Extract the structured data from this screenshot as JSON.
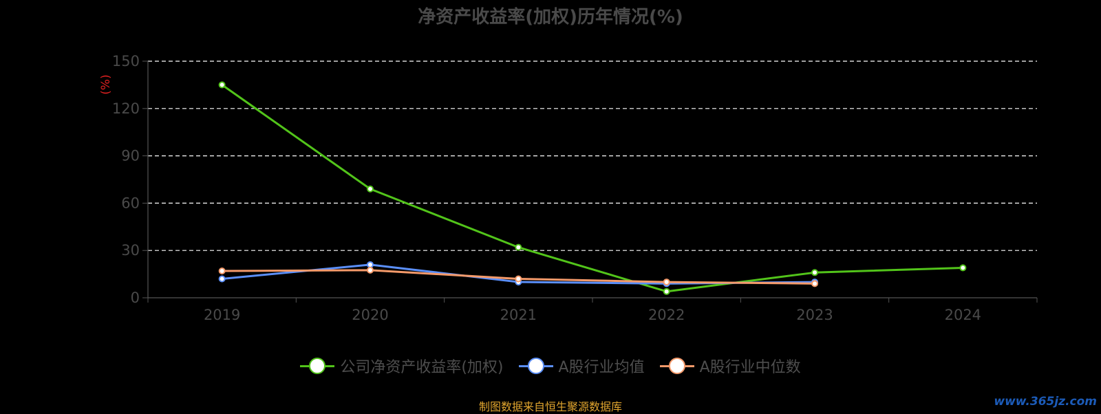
{
  "chart_data": {
    "type": "line",
    "title": "净资产收益率(加权)历年情况(%)",
    "ylabel": "(%)",
    "xlabel": "",
    "categories": [
      "2019",
      "2020",
      "2021",
      "2022",
      "2023",
      "2024"
    ],
    "ylim": [
      0,
      150
    ],
    "yticks": [
      0,
      30,
      60,
      90,
      120,
      150
    ],
    "grid": true,
    "legend_position": "bottom",
    "series": [
      {
        "name": "公司净资产收益率(加权)",
        "color": "#52c41a",
        "values": [
          135,
          69,
          32,
          4,
          16,
          19
        ]
      },
      {
        "name": "A股行业均值",
        "color": "#5b8ff9",
        "values": [
          12,
          21,
          10,
          9,
          10,
          null
        ]
      },
      {
        "name": "A股行业中位数",
        "color": "#f59a6a",
        "values": [
          17,
          17.5,
          12,
          10,
          9,
          null
        ]
      }
    ]
  },
  "source_note": "制图数据来自恒生聚源数据库",
  "watermark": "www.365jz.com"
}
